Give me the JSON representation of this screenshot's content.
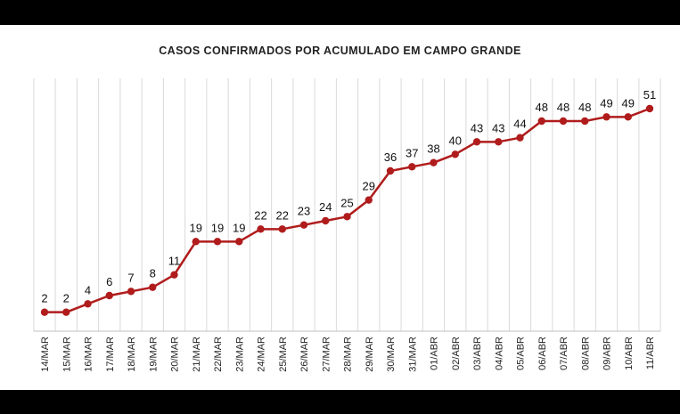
{
  "chart_data": {
    "type": "line",
    "title": "CASOS CONFIRMADOS  POR ACUMULADO  EM CAMPO GRANDE",
    "categories": [
      "14/MAR",
      "15/MAR",
      "16/MAR",
      "17/MAR",
      "18/MAR",
      "19/MAR",
      "20/MAR",
      "21/MAR",
      "22/MAR",
      "23/MAR",
      "24/MAR",
      "25/MAR",
      "26/MAR",
      "27/MAR",
      "28/MAR",
      "29/MAR",
      "30/MAR",
      "31/MAR",
      "01/ABR",
      "02/ABR",
      "03/ABR",
      "04/ABR",
      "05/ABR",
      "06/ABR",
      "07/ABR",
      "08/ABR",
      "09/ABR",
      "10/ABR",
      "11/ABR"
    ],
    "series": [
      {
        "values": [
          2,
          2,
          4,
          6,
          7,
          8,
          11,
          19,
          19,
          19,
          22,
          22,
          23,
          24,
          25,
          29,
          36,
          37,
          38,
          40,
          43,
          43,
          44,
          48,
          48,
          48,
          49,
          49,
          51
        ],
        "color": "#b01c1c"
      }
    ],
    "ylim": [
      0,
      60
    ],
    "grid": "vertical",
    "data_labels": true
  }
}
